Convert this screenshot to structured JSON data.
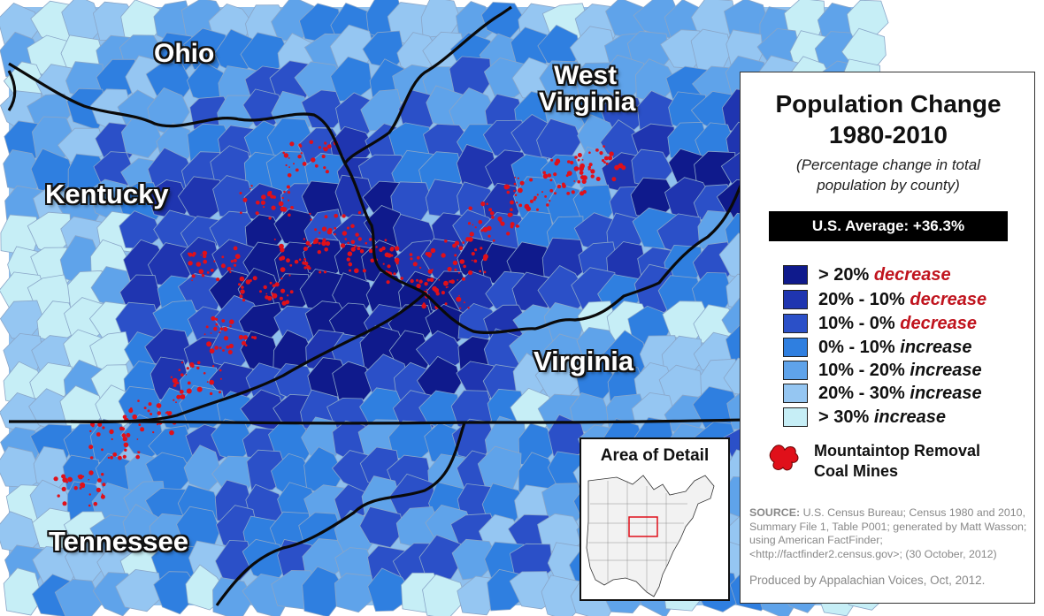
{
  "states": {
    "ohio": "Ohio",
    "west_virginia_1": "West",
    "west_virginia_2": "Virginia",
    "kentucky": "Kentucky",
    "virginia": "Virginia",
    "tennessee": "Tennessee"
  },
  "legend": {
    "title_1": "Population Change",
    "title_2": "1980-2010",
    "subtitle_1": "(Percentage change in total",
    "subtitle_2": "population by county)",
    "us_average": "U.S. Average: +36.3%",
    "classes": [
      {
        "range": "> 20%",
        "kind": "decrease",
        "color": "#0f1a8c",
        "kind_color": "#c0141e"
      },
      {
        "range": "20% - 10%",
        "kind": "decrease",
        "color": "#1f35b0",
        "kind_color": "#c0141e"
      },
      {
        "range": "10% - 0%",
        "kind": "decrease",
        "color": "#2b50c8",
        "kind_color": "#c0141e"
      },
      {
        "range": "0% - 10%",
        "kind": "increase",
        "color": "#2f7fe0",
        "kind_color": "#111111"
      },
      {
        "range": "10% - 20%",
        "kind": "increase",
        "color": "#5fa3ea",
        "kind_color": "#111111"
      },
      {
        "range": "20% - 30%",
        "kind": "increase",
        "color": "#95c6f2",
        "kind_color": "#111111"
      },
      {
        "range": "> 30%",
        "kind": "increase",
        "color": "#c6eef6",
        "kind_color": "#111111"
      }
    ],
    "mtr_line1": "Mountaintop Removal",
    "mtr_line2": "Coal Mines",
    "mtr_color": "#e0101a",
    "source_label": "SOURCE:",
    "source_text": "U.S. Census Bureau; Census 1980 and 2010, Summary File 1, Table P001; generated by Matt Wasson; using American FactFinder; <http://factfinder2.census.gov>; (30 October, 2012)",
    "produced": "Produced by Appalachian Voices, Oct, 2012."
  },
  "inset": {
    "title": "Area of Detail"
  }
}
